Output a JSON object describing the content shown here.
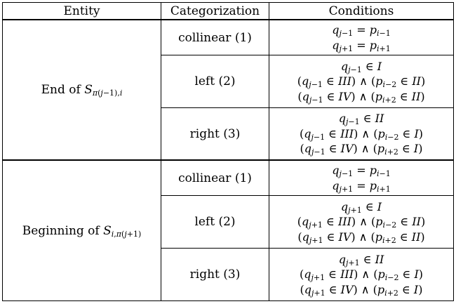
{
  "headers": {
    "entity": "Entity",
    "categorization": "Categorization",
    "conditions": "Conditions"
  },
  "groups": [
    {
      "entity": "End of Sπ(j−1),i",
      "rows": [
        {
          "category": "collinear (1)",
          "conditions": [
            "qj−1 = pi−1",
            "qj+1 = pi+1"
          ]
        },
        {
          "category": "left (2)",
          "conditions": [
            "qj−1 ∈ I",
            "(qj−1 ∈ III) ∧ (pi−2 ∈ II)",
            "(qj−1 ∈ IV) ∧ (pi+2 ∈ II)"
          ]
        },
        {
          "category": "right (3)",
          "conditions": [
            "qj−1 ∈ II",
            "(qj−1 ∈ III) ∧ (pi−2 ∈ I)",
            "(qj−1 ∈ IV) ∧ (pi+2 ∈ I)"
          ]
        }
      ]
    },
    {
      "entity": "Beginning of Si,π(j+1)",
      "rows": [
        {
          "category": "collinear (1)",
          "conditions": [
            "qj−1 = pi−1",
            "qj+1 = pi+1"
          ]
        },
        {
          "category": "left (2)",
          "conditions": [
            "qj+1 ∈ I",
            "(qj+1 ∈ III) ∧ (pi−2 ∈ II)",
            "(qj+1 ∈ IV) ∧ (pi+2 ∈ II)"
          ]
        },
        {
          "category": "right (3)",
          "conditions": [
            "qj+1 ∈ II",
            "(qj+1 ∈ III) ∧ (pi−2 ∈ I)",
            "(qj+1 ∈ IV) ∧ (pi+2 ∈ I)"
          ]
        }
      ]
    }
  ]
}
